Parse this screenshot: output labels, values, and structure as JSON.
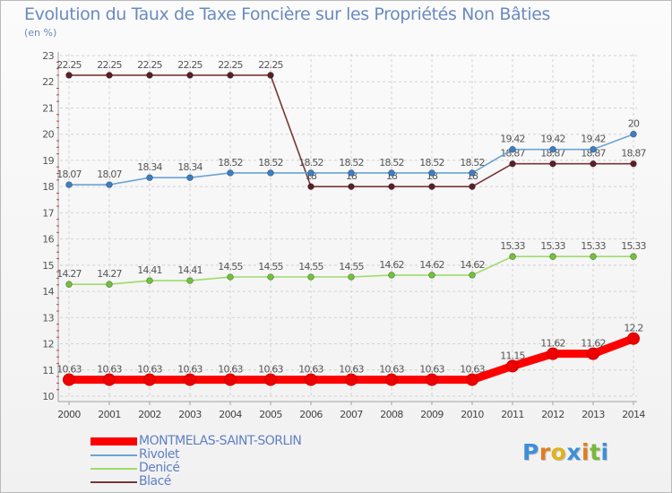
{
  "title": "Evolution du Taux de Taxe Foncière sur les Propriétés Non Bâties",
  "subtitle": "(en %)",
  "logo": {
    "letters": [
      "P",
      "r",
      "o",
      "x",
      "i",
      "t",
      "i"
    ],
    "colors": [
      "#3f8fd6",
      "#e07d20",
      "#e0b21c",
      "#3f8fd6",
      "#e07d20",
      "#7ab83c",
      "#3f8fd6"
    ]
  },
  "chart_data": {
    "type": "line",
    "title": "Evolution du Taux de Taxe Foncière sur les Propriétés Non Bâties",
    "ylabel": "(en %)",
    "xlabel": "",
    "ylim": [
      10,
      23
    ],
    "yticks": [
      "10",
      "11",
      "12",
      "13",
      "14",
      "15",
      "16",
      "17",
      "18",
      "19",
      "20",
      "21",
      "22",
      "23"
    ],
    "grid": true,
    "legend_position": "bottom-left",
    "x": [
      "2000",
      "2001",
      "2002",
      "2003",
      "2004",
      "2005",
      "2006",
      "2007",
      "2008",
      "2009",
      "2010",
      "2011",
      "2012",
      "2013",
      "2014"
    ],
    "series": [
      {
        "name": "Blacé",
        "color": "#7a3535",
        "marker_color": "#5c1f26",
        "values": [
          22.25,
          22.25,
          22.25,
          22.25,
          22.25,
          22.25,
          18,
          18,
          18,
          18,
          18,
          18.87,
          18.87,
          18.87,
          18.87
        ],
        "labels": [
          "22.25",
          "22.25",
          "22.25",
          "22.25",
          "22.25",
          "22.25",
          "18",
          "18",
          "18",
          "18",
          "18",
          "18.87",
          "18.87",
          "18.87",
          "18.87"
        ]
      },
      {
        "name": "Rivolet",
        "color": "#6ba3d6",
        "marker_color": "#3d7fc4",
        "values": [
          18.07,
          18.07,
          18.34,
          18.34,
          18.52,
          18.52,
          18.52,
          18.52,
          18.52,
          18.52,
          18.52,
          19.42,
          19.42,
          19.42,
          20
        ],
        "labels": [
          "18.07",
          "18.07",
          "18.34",
          "18.34",
          "18.52",
          "18.52",
          "18.52",
          "18.52",
          "18.52",
          "18.52",
          "18.52",
          "19.42",
          "19.42",
          "19.42",
          "20"
        ]
      },
      {
        "name": "Denicé",
        "color": "#9edb6a",
        "marker_color": "#72c23a",
        "values": [
          14.27,
          14.27,
          14.41,
          14.41,
          14.55,
          14.55,
          14.55,
          14.55,
          14.62,
          14.62,
          14.62,
          15.33,
          15.33,
          15.33,
          15.33
        ],
        "labels": [
          "14.27",
          "14.27",
          "14.41",
          "14.41",
          "14.55",
          "14.55",
          "14.55",
          "14.55",
          "14.62",
          "14.62",
          "14.62",
          "15.33",
          "15.33",
          "15.33",
          "15.33"
        ]
      },
      {
        "name": "MONTMELAS-SAINT-SORLIN",
        "color": "#ff0000",
        "marker_color": "#ee0000",
        "highlight": true,
        "values": [
          10.63,
          10.63,
          10.63,
          10.63,
          10.63,
          10.63,
          10.63,
          10.63,
          10.63,
          10.63,
          10.63,
          11.15,
          11.62,
          11.62,
          12.2
        ],
        "labels": [
          "10.63",
          "10.63",
          "10.63",
          "10.63",
          "10.63",
          "10.63",
          "10.63",
          "10.63",
          "10.63",
          "10.63",
          "10.63",
          "11.15",
          "11.62",
          "11.62",
          "12.2"
        ]
      }
    ],
    "legend": [
      "MONTMELAS-SAINT-SORLIN",
      "Rivolet",
      "Denicé",
      "Blacé"
    ]
  }
}
